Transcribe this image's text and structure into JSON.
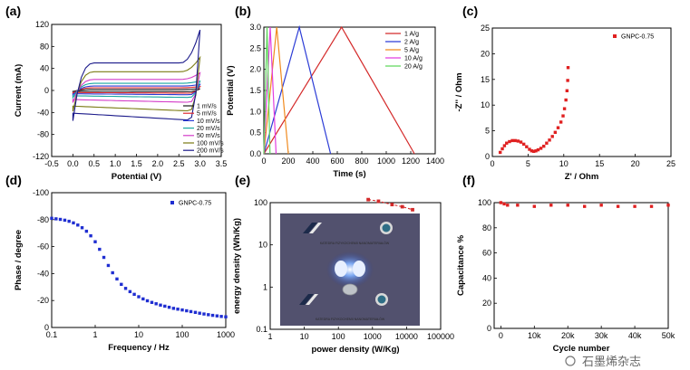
{
  "panels": [
    {
      "label": "(a)",
      "type": "line",
      "xlabel": "Potential (V)",
      "ylabel": "Current (mA)",
      "xlim": [
        -0.5,
        3.5
      ],
      "ylim": [
        -120,
        120
      ],
      "xticks": [
        "-0.5",
        "0.0",
        "0.5",
        "1.0",
        "1.5",
        "2.0",
        "2.5",
        "3.0",
        "3.5"
      ],
      "yticks": [
        "-120",
        "-80",
        "-40",
        "0",
        "40",
        "80",
        "120"
      ],
      "legend_position": "bottom-right",
      "series": [
        {
          "name": "1 mV/s",
          "color": "#1a1a1a",
          "curve": {
            "ipos": 2,
            "ineg": -2,
            "tip": 3
          }
        },
        {
          "name": "5 mV/s",
          "color": "#e0262b",
          "curve": {
            "ipos": 5,
            "ineg": -5,
            "tip": 7
          }
        },
        {
          "name": "10 mV/s",
          "color": "#2c3cd6",
          "curve": {
            "ipos": 8,
            "ineg": -8,
            "tip": 11
          }
        },
        {
          "name": "20 mV/s",
          "color": "#1aa7a0",
          "curve": {
            "ipos": 13,
            "ineg": -13,
            "tip": 17
          }
        },
        {
          "name": "50 mV/s",
          "color": "#d43cc8",
          "curve": {
            "ipos": 20,
            "ineg": -22,
            "tip": 32
          }
        },
        {
          "name": "100 mV/s",
          "color": "#7a7a12",
          "curve": {
            "ipos": 34,
            "ineg": -38,
            "tip": 60
          }
        },
        {
          "name": "200 mV/s",
          "color": "#1b1a8a",
          "curve": {
            "ipos": 50,
            "ineg": -55,
            "tip": 110
          }
        }
      ]
    },
    {
      "label": "(b)",
      "type": "line",
      "xlabel": "Time (s)",
      "ylabel": "Potential (V)",
      "xlim": [
        0,
        1400
      ],
      "ylim": [
        0,
        3.0
      ],
      "xticks": [
        "0",
        "200",
        "400",
        "600",
        "800",
        "1000",
        "1200",
        "1400"
      ],
      "yticks": [
        "0.0",
        "0.5",
        "1.0",
        "1.5",
        "2.0",
        "2.5",
        "3.0"
      ],
      "legend_position": "top-right",
      "series": [
        {
          "name": "1 A/g",
          "color": "#d42a2a",
          "x": [
            0,
            635,
            1230
          ],
          "y": [
            0,
            3.0,
            0
          ]
        },
        {
          "name": "2 A/g",
          "color": "#2c3cd6",
          "x": [
            0,
            290,
            545
          ],
          "y": [
            0,
            3.0,
            0
          ]
        },
        {
          "name": "5 A/g",
          "color": "#f08a1e",
          "x": [
            0,
            105,
            200
          ],
          "y": [
            0,
            3.0,
            0
          ]
        },
        {
          "name": "10 A/g",
          "color": "#e23ee0",
          "x": [
            0,
            52,
            100
          ],
          "y": [
            0,
            3.0,
            0
          ]
        },
        {
          "name": "20 A/g",
          "color": "#5fd65c",
          "x": [
            0,
            26,
            50
          ],
          "y": [
            0,
            3.0,
            0
          ]
        }
      ]
    },
    {
      "label": "(c)",
      "type": "scatter",
      "xlabel": "Z' / Ohm",
      "ylabel": "-Z'' / Ohm",
      "xlim": [
        0,
        25
      ],
      "ylim": [
        0,
        25
      ],
      "xticks": [
        "0",
        "5",
        "10",
        "15",
        "20",
        "25"
      ],
      "yticks": [
        "0",
        "5",
        "10",
        "15",
        "20",
        "25"
      ],
      "legend_position": "top-right",
      "series": [
        {
          "name": "GNPC-0.75",
          "color": "#e02020",
          "x": [
            1.1,
            1.4,
            1.7,
            2.0,
            2.4,
            2.8,
            3.2,
            3.6,
            4.0,
            4.4,
            4.8,
            5.2,
            5.5,
            5.8,
            6.1,
            6.4,
            6.8,
            7.2,
            7.6,
            8.0,
            8.4,
            8.8,
            9.2,
            9.6,
            9.9,
            10.1,
            10.3,
            10.45,
            10.55,
            10.6
          ],
          "y": [
            0.8,
            1.5,
            2.1,
            2.6,
            2.9,
            3.1,
            3.1,
            3.0,
            2.8,
            2.4,
            1.9,
            1.4,
            1.1,
            1.0,
            1.1,
            1.3,
            1.6,
            2.0,
            2.6,
            3.2,
            3.9,
            4.7,
            5.6,
            6.7,
            7.9,
            9.3,
            11.0,
            12.8,
            14.8,
            17.3
          ]
        }
      ]
    },
    {
      "label": "(d)",
      "type": "scatter",
      "xlabel": "Frequency / Hz",
      "ylabel": "Phase / degree",
      "xscale": "log",
      "xlim": [
        0.1,
        1000
      ],
      "ylim": [
        0,
        -100
      ],
      "xticks": [
        "0.1",
        "1",
        "10",
        "100",
        "1000"
      ],
      "yticks": [
        "-100",
        "-80",
        "-60",
        "-40",
        "-20",
        "0"
      ],
      "legend_position": "top-right",
      "series": [
        {
          "name": "GNPC-0.75",
          "color": "#1f2ed1",
          "x": [
            0.1,
            0.126,
            0.158,
            0.2,
            0.251,
            0.316,
            0.398,
            0.5,
            0.63,
            0.79,
            1.0,
            1.26,
            1.58,
            2.0,
            2.51,
            3.16,
            3.98,
            5.0,
            6.3,
            7.9,
            10,
            12.6,
            15.8,
            20,
            25.1,
            31.6,
            39.8,
            50,
            63,
            79,
            100,
            126,
            158,
            200,
            251,
            316,
            398,
            500,
            630,
            790,
            1000
          ],
          "y": [
            -81,
            -80.6,
            -80.2,
            -79.6,
            -78.8,
            -77.6,
            -76,
            -74,
            -71.4,
            -68,
            -63.6,
            -58,
            -52,
            -46,
            -40.6,
            -36,
            -32,
            -29,
            -26.6,
            -24.6,
            -22.8,
            -21.2,
            -19.8,
            -18.6,
            -17.6,
            -16.6,
            -15.8,
            -15,
            -14.2,
            -13.6,
            -13,
            -12.4,
            -11.8,
            -11.2,
            -10.6,
            -10,
            -9.5,
            -9,
            -8.6,
            -8.2,
            -7.9
          ]
        }
      ]
    },
    {
      "label": "(e)",
      "type": "line",
      "xlabel": "power density (W/Kg)",
      "ylabel": "energy density (Wh/Kg)",
      "xscale": "log",
      "yscale": "log",
      "xlim": [
        1,
        100000
      ],
      "ylim": [
        0.1,
        100
      ],
      "xticks": [
        "1",
        "10",
        "100",
        "1000",
        "10000",
        "100000"
      ],
      "yticks": [
        "0.1",
        "1",
        "10",
        "100"
      ],
      "series": [
        {
          "name": "",
          "color": "#d42a2a",
          "x": [
            750,
            1500,
            3750,
            7500,
            15000
          ],
          "y": [
            118,
            108,
            90,
            80,
            68
          ]
        }
      ],
      "inset_photo_text": [
        "KATEDRA FIZYKOCHEMII NANOMATERIAŁÓW",
        "KATEDRA FIZYKOCHEMII NANOMATERIAŁÓW"
      ]
    },
    {
      "label": "(f)",
      "type": "scatter",
      "xlabel": "Cycle number",
      "ylabel": "Capacitance %",
      "xlim": [
        -2000,
        50000
      ],
      "ylim": [
        0,
        100
      ],
      "xticks": [
        "0",
        "10k",
        "20k",
        "30k",
        "40k",
        "50k"
      ],
      "yticks": [
        "0",
        "20",
        "40",
        "60",
        "80",
        "100"
      ],
      "series": [
        {
          "name": "",
          "color": "#e02020",
          "x": [
            0,
            1000,
            2000,
            5000,
            10000,
            15000,
            20000,
            25000,
            30000,
            35000,
            40000,
            45000,
            50000
          ],
          "y": [
            100,
            99,
            98,
            98,
            97,
            98,
            98,
            97,
            98,
            97,
            97,
            97,
            98
          ]
        }
      ]
    }
  ],
  "watermark": "石墨烯杂志"
}
